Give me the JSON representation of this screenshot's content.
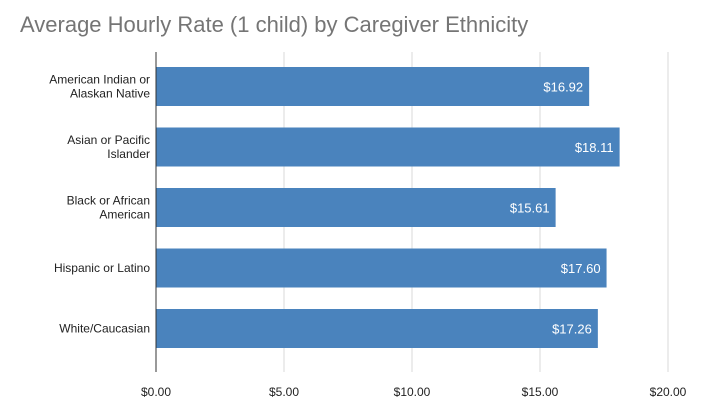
{
  "chart_data": {
    "type": "bar",
    "orientation": "horizontal",
    "title": "Average Hourly Rate (1 child) by Caregiver Ethnicity",
    "categories": [
      [
        "American Indian or",
        "Alaskan Native"
      ],
      [
        "Asian or Pacific",
        "Islander"
      ],
      [
        "Black or African",
        "American"
      ],
      [
        "Hispanic or Latino"
      ],
      [
        "White/Caucasian"
      ]
    ],
    "values": [
      16.92,
      18.11,
      15.61,
      17.6,
      17.26
    ],
    "data_labels": [
      "$16.92",
      "$18.11",
      "$15.61",
      "$17.60",
      "$17.26"
    ],
    "x_ticks": [
      0,
      5,
      10,
      15,
      20
    ],
    "x_tick_labels": [
      "$0.00",
      "$5.00",
      "$10.00",
      "$15.00",
      "$20.00"
    ],
    "xlim": [
      0,
      20
    ],
    "xlabel": "",
    "ylabel": "",
    "grid": true,
    "legend": "none",
    "bar_color": "#4a83bd",
    "title_color": "#757575"
  }
}
